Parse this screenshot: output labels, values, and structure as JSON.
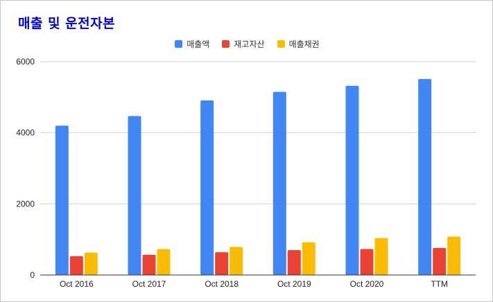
{
  "chart_data": {
    "type": "bar",
    "title": "매출 및 운전자본",
    "categories": [
      "Oct 2016",
      "Oct 2017",
      "Oct 2018",
      "Oct 2019",
      "Oct 2020",
      "TTM"
    ],
    "series": [
      {
        "name": "매출액",
        "color": "#4285f4",
        "values": [
          4200,
          4470,
          4910,
          5150,
          5320,
          5510
        ]
      },
      {
        "name": "재고자산",
        "color": "#ea4335",
        "values": [
          530,
          570,
          640,
          700,
          730,
          760
        ]
      },
      {
        "name": "매출채권",
        "color": "#fbbc04",
        "values": [
          630,
          730,
          790,
          920,
          1040,
          1080
        ]
      }
    ],
    "yticks": [
      0,
      2000,
      4000,
      6000
    ],
    "ylim": [
      0,
      6000
    ],
    "grid": true,
    "legend_position": "top-center"
  }
}
